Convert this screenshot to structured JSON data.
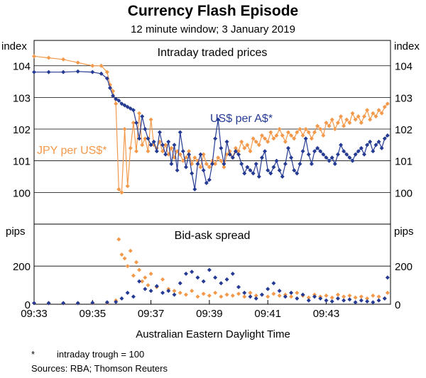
{
  "colors": {
    "aud": "#253b93",
    "jpy": "#f3994b",
    "frame": "#000000",
    "grid": "#000000"
  },
  "chart_data": {
    "type": "line",
    "title": "Currency Flash Episode",
    "subtitle": "12 minute window; 3 January 2019",
    "xlabel": "Australian Eastern Daylight Time",
    "x_range_minutes": [
      0,
      12.2
    ],
    "x_ticks": [
      {
        "value": 0,
        "label": "09:33"
      },
      {
        "value": 2,
        "label": "09:35"
      },
      {
        "value": 4,
        "label": "09:37"
      },
      {
        "value": 6,
        "label": "09:39"
      },
      {
        "value": 8,
        "label": "09:41"
      },
      {
        "value": 10,
        "label": "09:43"
      }
    ],
    "panels": [
      {
        "id": "prices",
        "title": "Intraday traded prices",
        "unit_left": "index",
        "unit_right": "index",
        "ylim": [
          99,
          104.8
        ],
        "y_ticks": [
          100,
          101,
          102,
          103,
          104
        ],
        "series": [
          {
            "name": "US$ per A$*",
            "color_key": "aud",
            "x": [
              0.0,
              0.5,
              1.0,
              1.5,
              2.0,
              2.3,
              2.5,
              2.6,
              2.7,
              2.8,
              2.9,
              3.0,
              3.1,
              3.2,
              3.3,
              3.4,
              3.5,
              3.6,
              3.7,
              3.8,
              3.9,
              4.0,
              4.1,
              4.2,
              4.3,
              4.4,
              4.5,
              4.6,
              4.7,
              4.8,
              4.9,
              5.0,
              5.1,
              5.2,
              5.3,
              5.4,
              5.5,
              5.6,
              5.7,
              5.8,
              5.9,
              6.0,
              6.1,
              6.2,
              6.3,
              6.4,
              6.5,
              6.6,
              6.7,
              6.8,
              6.9,
              7.0,
              7.1,
              7.2,
              7.3,
              7.4,
              7.5,
              7.6,
              7.7,
              7.8,
              7.9,
              8.0,
              8.1,
              8.2,
              8.3,
              8.4,
              8.5,
              8.6,
              8.7,
              8.8,
              8.9,
              9.0,
              9.1,
              9.2,
              9.3,
              9.4,
              9.5,
              9.6,
              9.7,
              9.8,
              9.9,
              10.0,
              10.1,
              10.2,
              10.3,
              10.4,
              10.5,
              10.6,
              10.7,
              10.8,
              10.9,
              11.0,
              11.1,
              11.2,
              11.3,
              11.4,
              11.5,
              11.6,
              11.7,
              11.8,
              11.9,
              12.0,
              12.1
            ],
            "values": [
              103.8,
              103.8,
              103.8,
              103.82,
              103.8,
              103.75,
              103.6,
              103.3,
              103.05,
              102.95,
              102.9,
              102.8,
              102.75,
              102.7,
              102.65,
              102.6,
              102.2,
              101.7,
              102.4,
              102.0,
              101.7,
              101.5,
              101.6,
              101.3,
              101.9,
              101.5,
              101.2,
              101.6,
              100.9,
              101.5,
              100.7,
              101.9,
              101.3,
              100.8,
              101.2,
              100.6,
              100.1,
              100.9,
              101.2,
              100.7,
              100.3,
              100.4,
              100.9,
              101.7,
              102.3,
              101.4,
              100.9,
              101.6,
              101.2,
              101.1,
              101.3,
              101.2,
              100.9,
              100.6,
              100.8,
              100.7,
              100.6,
              100.9,
              100.5,
              101.1,
              101.3,
              100.7,
              100.6,
              100.8,
              101.0,
              100.7,
              100.5,
              100.9,
              101.4,
              101.1,
              100.7,
              100.6,
              100.9,
              101.3,
              101.7,
              101.2,
              100.9,
              101.3,
              101.4,
              101.3,
              101.2,
              101.1,
              101.0,
              101.1,
              100.9,
              101.2,
              101.5,
              101.3,
              101.2,
              101.1,
              101.0,
              101.2,
              101.3,
              101.4,
              101.2,
              101.5,
              101.6,
              101.3,
              101.5,
              101.6,
              101.4,
              101.7,
              101.8
            ],
            "label_position": "upper-middle"
          },
          {
            "name": "JPY per US$*",
            "color_key": "jpy",
            "x": [
              0.0,
              0.5,
              1.0,
              1.5,
              2.0,
              2.3,
              2.5,
              2.6,
              2.7,
              2.8,
              2.9,
              3.0,
              3.1,
              3.2,
              3.3,
              3.4,
              3.5,
              3.6,
              3.7,
              3.8,
              3.9,
              4.0,
              4.1,
              4.2,
              4.3,
              4.4,
              4.5,
              4.6,
              4.7,
              4.8,
              4.9,
              5.0,
              5.1,
              5.2,
              5.3,
              5.4,
              5.5,
              5.6,
              5.7,
              5.8,
              5.9,
              6.0,
              6.1,
              6.2,
              6.3,
              6.4,
              6.5,
              6.6,
              6.7,
              6.8,
              6.9,
              7.0,
              7.1,
              7.2,
              7.3,
              7.4,
              7.5,
              7.6,
              7.7,
              7.8,
              7.9,
              8.0,
              8.1,
              8.2,
              8.3,
              8.4,
              8.5,
              8.6,
              8.7,
              8.8,
              8.9,
              9.0,
              9.1,
              9.2,
              9.3,
              9.4,
              9.5,
              9.6,
              9.7,
              9.8,
              9.9,
              10.0,
              10.1,
              10.2,
              10.3,
              10.4,
              10.5,
              10.6,
              10.7,
              10.8,
              10.9,
              11.0,
              11.1,
              11.2,
              11.3,
              11.4,
              11.5,
              11.6,
              11.7,
              11.8,
              11.9,
              12.0,
              12.1
            ],
            "values": [
              104.3,
              104.25,
              104.2,
              104.1,
              104.0,
              104.0,
              103.8,
              103.4,
              103.2,
              102.8,
              100.1,
              100.0,
              102.0,
              100.2,
              101.4,
              102.2,
              101.3,
              102.5,
              101.5,
              101.7,
              101.3,
              102.3,
              101.5,
              101.4,
              101.6,
              101.3,
              101.5,
              101.2,
              101.4,
              101.1,
              101.3,
              101.2,
              101.0,
              101.1,
              101.3,
              100.9,
              101.1,
              101.0,
              100.8,
              101.2,
              100.9,
              100.8,
              101.0,
              100.9,
              101.1,
              101.0,
              100.8,
              101.2,
              101.3,
              101.1,
              101.4,
              101.3,
              101.6,
              101.4,
              101.5,
              101.3,
              101.7,
              101.6,
              101.5,
              101.8,
              101.7,
              101.6,
              101.9,
              101.7,
              101.8,
              102.0,
              101.8,
              101.6,
              101.9,
              101.8,
              101.7,
              101.9,
              102.0,
              101.8,
              102.0,
              101.9,
              101.7,
              101.9,
              102.1,
              102.0,
              101.8,
              102.2,
              102.1,
              102.3,
              102.0,
              102.2,
              102.4,
              102.1,
              102.3,
              102.2,
              102.5,
              102.3,
              102.4,
              102.2,
              102.4,
              102.6,
              102.3,
              102.5,
              102.4,
              102.6,
              102.5,
              102.7,
              102.8
            ],
            "label_position": "left"
          }
        ]
      },
      {
        "id": "spread",
        "title": "Bid-ask spread",
        "unit_left": "pips",
        "unit_right": "pips",
        "ylim": [
          0,
          420
        ],
        "y_ticks": [
          0,
          200
        ],
        "series": [
          {
            "name": "US$ per A$*",
            "color_key": "aud",
            "x": [
              0.0,
              0.5,
              1.0,
              1.5,
              2.0,
              2.5,
              2.8,
              3.0,
              3.2,
              3.4,
              3.6,
              3.8,
              4.0,
              4.2,
              4.4,
              4.6,
              4.8,
              5.0,
              5.2,
              5.4,
              5.6,
              5.8,
              6.0,
              6.2,
              6.4,
              6.6,
              6.8,
              7.0,
              7.2,
              7.4,
              7.6,
              7.8,
              8.0,
              8.2,
              8.4,
              8.6,
              8.8,
              9.0,
              9.2,
              9.4,
              9.6,
              9.8,
              10.0,
              10.2,
              10.4,
              10.6,
              10.8,
              11.0,
              11.2,
              11.4,
              11.6,
              11.8,
              12.0,
              12.1
            ],
            "values": [
              6,
              6,
              6,
              6,
              8,
              10,
              12,
              30,
              60,
              40,
              120,
              80,
              70,
              95,
              60,
              70,
              50,
              110,
              160,
              170,
              140,
              120,
              180,
              140,
              110,
              130,
              160,
              90,
              60,
              40,
              30,
              50,
              80,
              110,
              70,
              40,
              60,
              30,
              50,
              20,
              40,
              30,
              20,
              15,
              30,
              20,
              25,
              10,
              20,
              15,
              10,
              20,
              30,
              140
            ]
          },
          {
            "name": "JPY per US$*",
            "color_key": "jpy",
            "x": [
              0.0,
              0.5,
              1.0,
              1.5,
              2.0,
              2.5,
              2.8,
              2.9,
              3.0,
              3.1,
              3.2,
              3.3,
              3.4,
              3.5,
              3.6,
              3.7,
              3.8,
              3.9,
              4.0,
              4.2,
              4.4,
              4.6,
              4.8,
              5.0,
              5.2,
              5.4,
              5.6,
              5.8,
              6.0,
              6.2,
              6.4,
              6.6,
              6.8,
              7.0,
              7.2,
              7.4,
              7.6,
              7.8,
              8.0,
              8.2,
              8.4,
              8.6,
              8.8,
              9.0,
              9.2,
              9.4,
              9.6,
              9.8,
              10.0,
              10.2,
              10.4,
              10.6,
              10.8,
              11.0,
              11.2,
              11.4,
              11.6,
              11.8,
              12.0,
              12.1
            ],
            "values": [
              6,
              6,
              5,
              6,
              6,
              8,
              20,
              340,
              260,
              240,
              200,
              280,
              150,
              220,
              180,
              120,
              140,
              100,
              160,
              90,
              130,
              80,
              70,
              60,
              50,
              70,
              40,
              55,
              45,
              60,
              40,
              50,
              45,
              55,
              40,
              60,
              45,
              50,
              40,
              55,
              45,
              50,
              40,
              60,
              45,
              35,
              50,
              40,
              45,
              35,
              50,
              40,
              45,
              35,
              40,
              30,
              45,
              40,
              30,
              60
            ]
          }
        ]
      }
    ],
    "notes": [
      "*",
      "intraday trough = 100"
    ],
    "sources": "Sources: RBA; Thomson Reuters"
  }
}
